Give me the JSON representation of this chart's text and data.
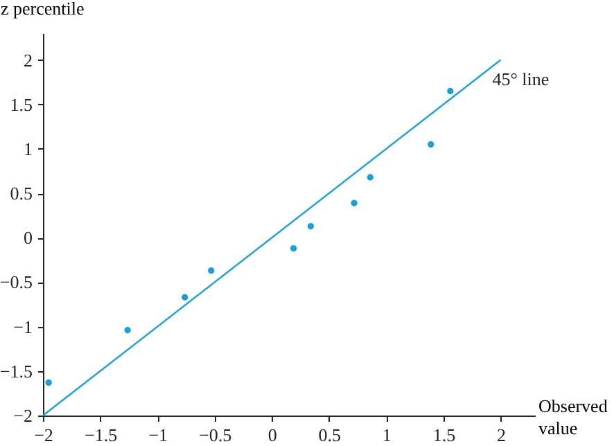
{
  "chart_data": {
    "type": "scatter",
    "xlabel": "Observed value",
    "ylabel": "z percentile",
    "xlim": [
      -2,
      2.3
    ],
    "ylim": [
      -2,
      2.3
    ],
    "xticks": [
      -2,
      -1.5,
      -1,
      -0.5,
      0,
      0.5,
      1,
      1.5,
      2
    ],
    "yticks": [
      -2,
      -1.5,
      -1,
      -0.5,
      0,
      0.5,
      1,
      1.5,
      2
    ],
    "grid": false,
    "series": [
      {
        "marker": "circle",
        "color": "#1aa0d8",
        "x": [
          -1.95,
          -1.26,
          -0.76,
          -0.53,
          0.19,
          0.34,
          0.72,
          0.86,
          1.39,
          1.56
        ],
        "values": [
          -1.63,
          -1.04,
          -0.67,
          -0.37,
          -0.12,
          0.13,
          0.39,
          0.68,
          1.05,
          1.65
        ]
      },
      {
        "type": "line",
        "name": "45° line",
        "color": "#1aa0d8",
        "line_style": "solid",
        "marker": "none",
        "x": [
          -2,
          2
        ],
        "values": [
          -2,
          2
        ]
      }
    ]
  }
}
